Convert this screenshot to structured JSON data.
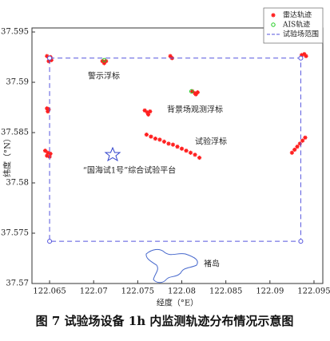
{
  "chart_data": {
    "type": "scatter",
    "xlabel": "经度（°E）",
    "ylabel": "纬度（°N）",
    "caption": "图 7  试验场设备 1h 内监测轨迹分布情况示意图",
    "xlim": [
      122.063,
      122.096
    ],
    "ylim": [
      37.57,
      37.5954
    ],
    "xticks": [
      122.065,
      122.07,
      122.075,
      122.08,
      122.085,
      122.09,
      122.095
    ],
    "yticks": [
      37.57,
      37.575,
      37.58,
      37.585,
      37.59,
      37.595
    ],
    "annotations": [
      "警示浮标",
      "背景场观测浮标",
      "试验浮标",
      "“国海试1号”综合试验平台",
      "褚岛"
    ],
    "series": [
      {
        "name": "雷达轨迹",
        "color": "#ff2020",
        "marker": "asterisk",
        "x": [
          122.0647,
          122.065,
          122.0652,
          122.0649,
          122.0651,
          122.071,
          122.0712,
          122.0714,
          122.0787,
          122.0789,
          122.0936,
          122.0939,
          122.0941,
          122.0647,
          122.0648,
          122.0649,
          122.0758,
          122.0761,
          122.0764,
          122.0762,
          122.0812,
          122.0815,
          122.0818,
          122.0816,
          122.0645,
          122.0648,
          122.0651,
          122.0647,
          122.065,
          122.076,
          122.0765,
          122.077,
          122.0775,
          122.078,
          122.0785,
          122.079,
          122.0795,
          122.08,
          122.0805,
          122.081,
          122.0815,
          122.082,
          122.0925,
          122.0928,
          122.0931,
          122.0934,
          122.0937,
          122.094
        ],
        "values": [
          37.5926,
          37.5924,
          37.5922,
          37.5921,
          37.5925,
          37.5921,
          37.5919,
          37.5921,
          37.5926,
          37.5924,
          37.5927,
          37.5928,
          37.5926,
          37.5874,
          37.5871,
          37.5873,
          37.5872,
          37.587,
          37.5871,
          37.5868,
          37.5891,
          37.5889,
          37.589,
          37.5888,
          37.5832,
          37.583,
          37.5829,
          37.5827,
          37.5826,
          37.5848,
          37.5846,
          37.5844,
          37.5843,
          37.5841,
          37.5839,
          37.5838,
          37.5836,
          37.5834,
          37.5832,
          37.583,
          37.5828,
          37.5825,
          37.583,
          37.5833,
          37.5836,
          37.5839,
          37.5842,
          37.5845
        ]
      },
      {
        "name": "AIS轨迹",
        "color": "#22cc22",
        "marker": "circle",
        "x": [
          122.0712,
          122.0811
        ],
        "values": [
          37.5922,
          37.5891
        ]
      },
      {
        "name": "试验场范围",
        "color": "#5555dd",
        "marker": "dashed-line",
        "x": [
          122.065,
          122.0935,
          122.0935,
          122.065,
          122.065
        ],
        "values": [
          37.5924,
          37.5924,
          37.5742,
          37.5742,
          37.5924
        ]
      }
    ]
  }
}
